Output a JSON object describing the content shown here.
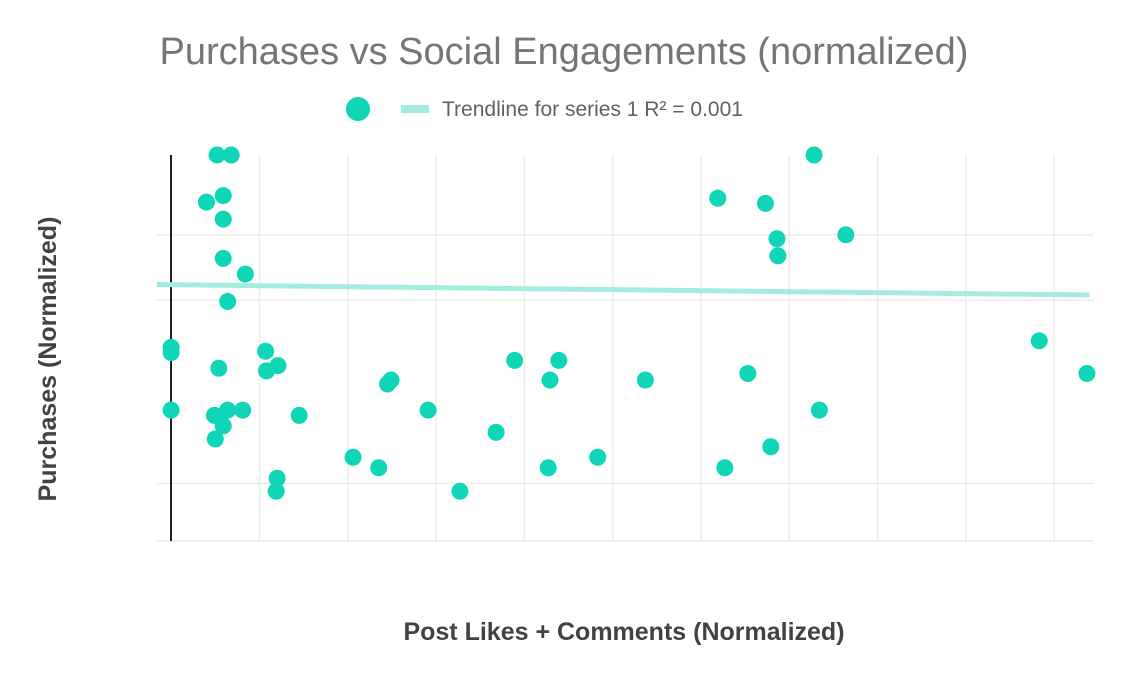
{
  "chart_data": {
    "type": "scatter",
    "title": "Purchases vs Social Engagements (normalized)",
    "xlabel": "Post Likes + Comments (Normalized)",
    "ylabel": "Purchases (Normalized)",
    "xlim": [
      -0.16,
      10.45
    ],
    "ylim": [
      -1.04,
      1.91
    ],
    "grid": true,
    "legend": "top",
    "colors": {
      "points": "#0fd6b6",
      "trendline": "#a4ece0"
    },
    "series": [
      {
        "values": [
          [
            0,
            0.4
          ],
          [
            0,
            0.44
          ],
          [
            0,
            -0.04
          ],
          [
            0.4,
            1.55
          ],
          [
            0.52,
            1.91
          ],
          [
            0.68,
            1.91
          ],
          [
            0.59,
            1.6
          ],
          [
            0.59,
            1.42
          ],
          [
            0.59,
            1.12
          ],
          [
            0.84,
            1.0
          ],
          [
            0.64,
            0.79
          ],
          [
            0.54,
            0.28
          ],
          [
            0.49,
            -0.08
          ],
          [
            0.59,
            -0.16
          ],
          [
            0.5,
            -0.26
          ],
          [
            0.64,
            -0.04
          ],
          [
            0.81,
            -0.04
          ],
          [
            1.07,
            0.41
          ],
          [
            1.08,
            0.26
          ],
          [
            1.21,
            0.3
          ],
          [
            1.2,
            -0.56
          ],
          [
            1.19,
            -0.66
          ],
          [
            1.45,
            -0.08
          ],
          [
            2.06,
            -0.4
          ],
          [
            2.35,
            -0.48
          ],
          [
            2.45,
            0.16
          ],
          [
            2.49,
            0.19
          ],
          [
            2.91,
            -0.04
          ],
          [
            3.27,
            -0.66
          ],
          [
            3.68,
            -0.21
          ],
          [
            3.89,
            0.34
          ],
          [
            4.29,
            0.19
          ],
          [
            4.39,
            0.34
          ],
          [
            4.27,
            -0.48
          ],
          [
            4.83,
            -0.4
          ],
          [
            5.37,
            0.19
          ],
          [
            6.19,
            1.58
          ],
          [
            6.27,
            -0.48
          ],
          [
            6.53,
            0.24
          ],
          [
            6.73,
            1.54
          ],
          [
            6.79,
            -0.32
          ],
          [
            6.86,
            1.27
          ],
          [
            6.87,
            1.14
          ],
          [
            7.28,
            1.91
          ],
          [
            7.34,
            -0.04
          ],
          [
            7.64,
            1.3
          ],
          [
            9.83,
            0.49
          ],
          [
            10.37,
            0.24
          ]
        ]
      }
    ],
    "trendline": {
      "label": "Trendline for series 1 R² = 0.001",
      "x": [
        -0.16,
        10.4
      ],
      "y": [
        0.92,
        0.84
      ]
    }
  }
}
